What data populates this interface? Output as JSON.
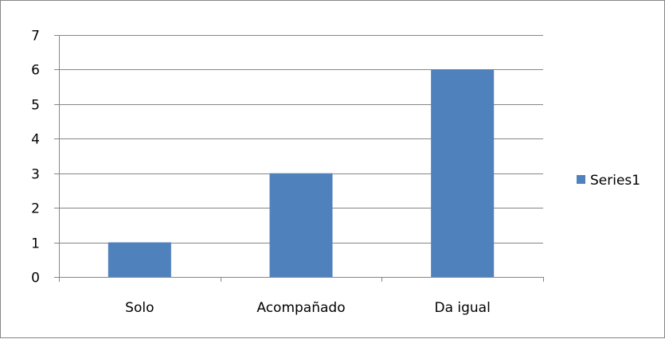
{
  "chart_data": {
    "type": "bar",
    "title": "",
    "xlabel": "",
    "ylabel": "",
    "categories": [
      "Solo",
      "Acompañado",
      "Da igual"
    ],
    "series": [
      {
        "name": "Series1",
        "values": [
          1,
          3,
          6
        ],
        "color": "#4F81BD"
      }
    ],
    "ylim": [
      0,
      7
    ],
    "yticks": [
      0,
      1,
      2,
      3,
      4,
      5,
      6,
      7
    ],
    "grid": true,
    "legend": "right",
    "colors": {
      "bar": "#4F81BD",
      "grid": "#868686",
      "axis": "#868686"
    }
  }
}
